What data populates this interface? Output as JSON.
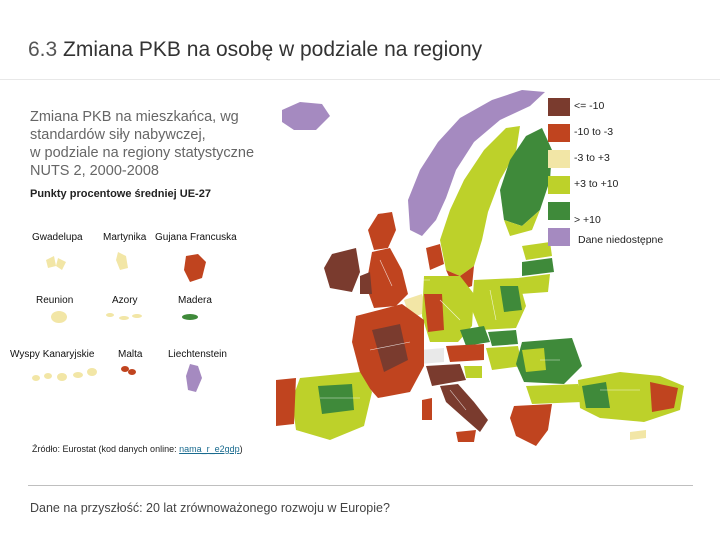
{
  "slide": {
    "title_number": "6.3",
    "title_text": "Zmiana PKB na osobę w podziale na regiony"
  },
  "map": {
    "subtitle_lines": [
      "Zmiana PKB na mieszkańca, wg",
      "standardów siły nabywczej,",
      "w podziale na regiony statystyczne",
      "NUTS 2, 2000-2008"
    ],
    "units": "Punkty procentowe średniej UE-27",
    "legend": [
      {
        "label": "<= -10",
        "color": "#7a3b2e"
      },
      {
        "label": "-10 to -3",
        "color": "#c0441f"
      },
      {
        "label": "-3 to +3",
        "color": "#f2e6a6"
      },
      {
        "label": "+3 to +10",
        "color": "#bdd12a"
      },
      {
        "label": "> +10",
        "color": "#3f8a3a"
      },
      {
        "label": "Dane niedostępne",
        "color": "#a58ac0"
      }
    ],
    "inset_labels": {
      "gwadelupa": "Gwadelupa",
      "martynika": "Martynika",
      "gujana": "Gujana Francuska",
      "reunion": "Reunion",
      "azory": "Azory",
      "madera": "Madera",
      "kanaryjskie": "Wyspy Kanaryjskie",
      "malta": "Malta",
      "liechtenstein": "Liechtenstein"
    }
  },
  "source": {
    "prefix": "Źródło: Eurostat (kod danych online: ",
    "code": "nama_r_e2gdp",
    "suffix": ")"
  },
  "footer": "Dane na przyszłość: 20 lat zrównoważonego rozwoju w Europie?"
}
